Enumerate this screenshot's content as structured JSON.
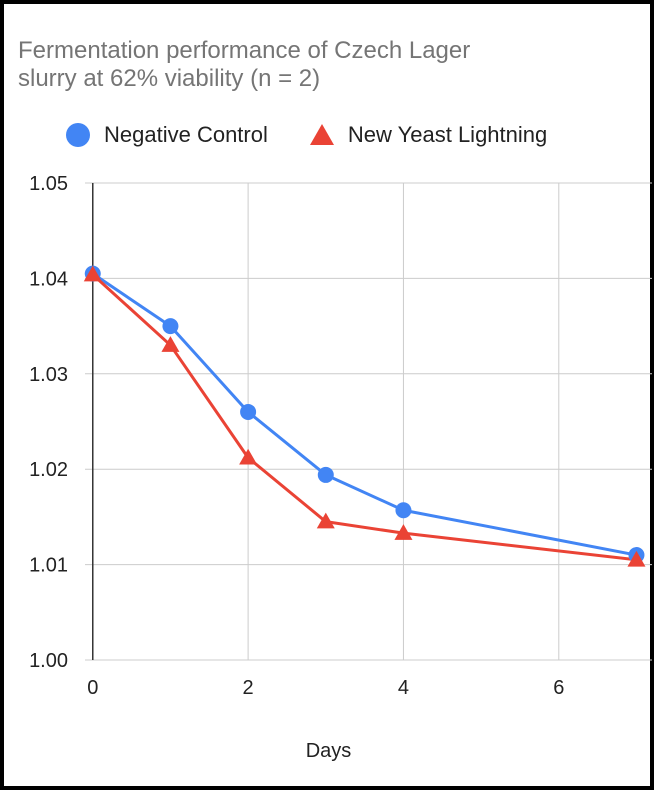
{
  "chart_data": {
    "type": "line",
    "title_line1": "Fermentation performance of Czech Lager",
    "title_line2": "slurry at 62% viability (n = 2)",
    "xlabel": "Days",
    "ylabel": "",
    "xlim": [
      -0.1,
      7.2
    ],
    "ylim": [
      1.0,
      1.05
    ],
    "x_ticks": [
      0,
      2,
      4,
      6
    ],
    "y_ticks": [
      1.0,
      1.01,
      1.02,
      1.03,
      1.04,
      1.05
    ],
    "y_tick_labels": [
      "1.00",
      "1.01",
      "1.02",
      "1.03",
      "1.04",
      "1.05"
    ],
    "grid": true,
    "legend_position": "top",
    "series": [
      {
        "name": "Negative Control",
        "marker": "circle",
        "color": "#4285F4",
        "x": [
          0,
          1,
          2,
          3,
          4,
          7
        ],
        "y": [
          1.0405,
          1.035,
          1.026,
          1.0194,
          1.0157,
          1.011
        ]
      },
      {
        "name": "New Yeast Lightning",
        "marker": "triangle",
        "color": "#EA4335",
        "x": [
          0,
          1,
          2,
          3,
          4,
          7
        ],
        "y": [
          1.0404,
          1.033,
          1.0212,
          1.0145,
          1.0133,
          1.0105
        ]
      }
    ]
  }
}
